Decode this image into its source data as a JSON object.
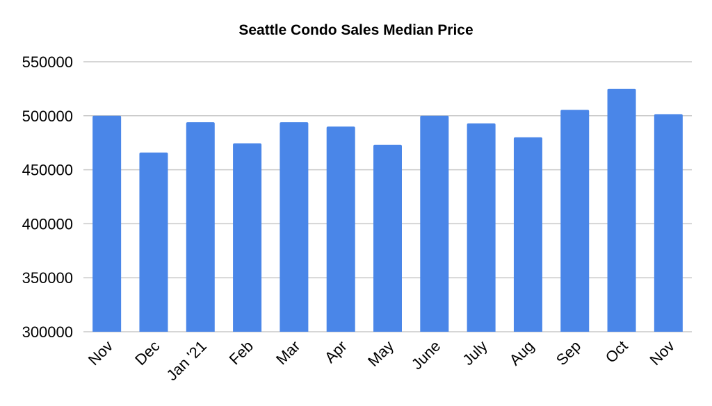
{
  "chart_data": {
    "type": "bar",
    "title": "Seattle Condo Sales Median Price",
    "xlabel": "",
    "ylabel": "",
    "categories": [
      "Nov",
      "Dec",
      "Jan '21",
      "Feb",
      "Mar",
      "Apr",
      "May",
      "June",
      "July",
      "Aug",
      "Sep",
      "Oct",
      "Nov"
    ],
    "values": [
      500000,
      466000,
      494000,
      474500,
      494000,
      490000,
      473000,
      500000,
      493000,
      480000,
      505500,
      525000,
      501500
    ],
    "ylim": [
      300000,
      550000
    ],
    "yticks": [
      "300000",
      "350000",
      "400000",
      "450000",
      "500000",
      "550000"
    ],
    "ytick_values": [
      300000,
      350000,
      400000,
      450000,
      500000,
      550000
    ],
    "grid": true,
    "legend": "none",
    "bar_color": "#4A86E8",
    "grid_color": "#C8C8C8"
  }
}
